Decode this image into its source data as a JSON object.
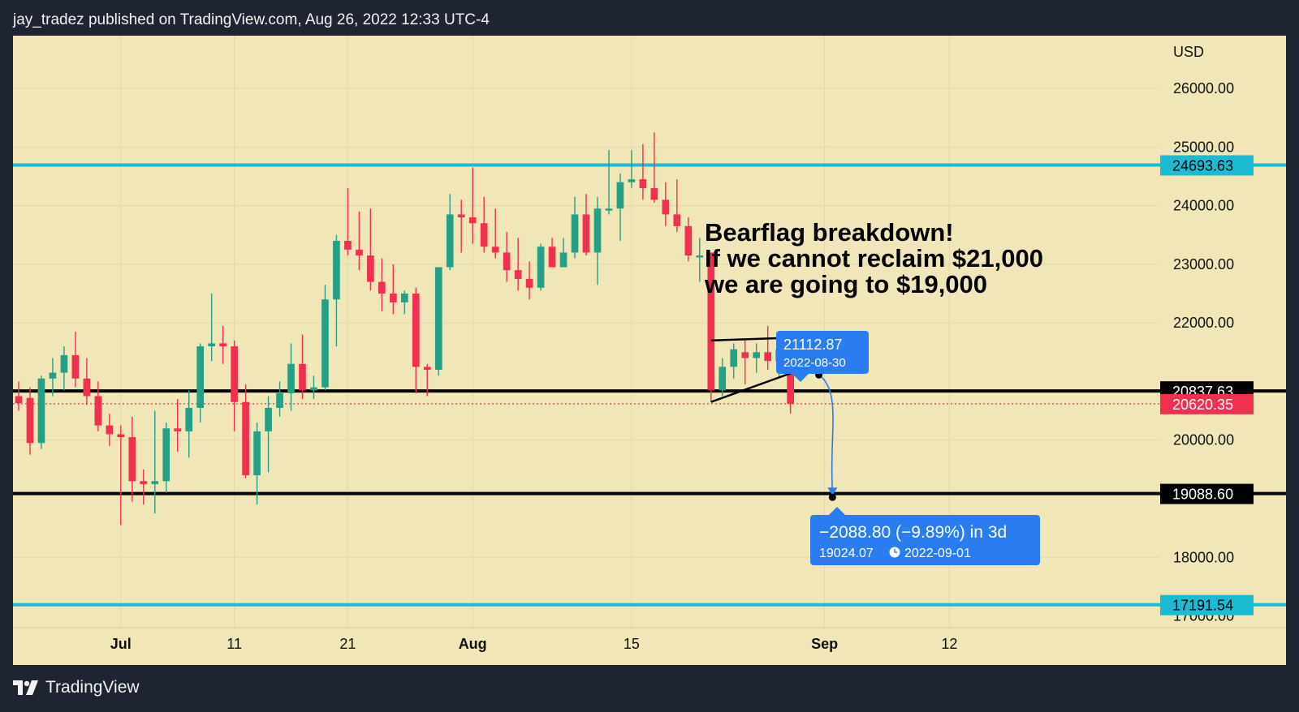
{
  "header": {
    "text": "jay_tradez published on TradingView.com, Aug 26, 2022 12:33 UTC-4"
  },
  "footer": {
    "brand": "TradingView"
  },
  "colors": {
    "background": "#f0e6b8",
    "frame": "#1f2432",
    "up": "#26a085",
    "down": "#f0304f",
    "cyan_line": "#1bbcd3",
    "black_line": "#000000",
    "callout": "#2b7cf0",
    "grid": "#e3d8a6"
  },
  "chart_data": {
    "type": "candlestick",
    "symbol_currency": "USD",
    "y_axis_ticks": [
      "26000.00",
      "25000.00",
      "24000.00",
      "23000.00",
      "22000.00",
      "20000.00",
      "18000.00"
    ],
    "y_range": [
      16800,
      26900
    ],
    "x_axis_ticks": [
      {
        "label": "Jul",
        "day": 5
      },
      {
        "label": "11",
        "day": 15
      },
      {
        "label": "21",
        "day": 25
      },
      {
        "label": "Aug",
        "day": 36
      },
      {
        "label": "15",
        "day": 50
      },
      {
        "label": "Sep",
        "day": 67
      },
      {
        "label": "12",
        "day": 78
      }
    ],
    "x_range": [
      -4.5,
      96.5
    ],
    "candles": [
      {
        "day": -4,
        "o": 20750,
        "h": 21000,
        "l": 20500,
        "c": 20630
      },
      {
        "day": -3,
        "o": 20720,
        "h": 20900,
        "l": 19750,
        "c": 19950
      },
      {
        "day": -2,
        "o": 19950,
        "h": 21100,
        "l": 19850,
        "c": 21050
      },
      {
        "day": -1,
        "o": 21050,
        "h": 21400,
        "l": 20750,
        "c": 21150
      },
      {
        "day": 0,
        "o": 21150,
        "h": 21600,
        "l": 20850,
        "c": 21450
      },
      {
        "day": 1,
        "o": 21450,
        "h": 21850,
        "l": 20900,
        "c": 21050
      },
      {
        "day": 2,
        "o": 21050,
        "h": 21400,
        "l": 20600,
        "c": 20750
      },
      {
        "day": 3,
        "o": 20750,
        "h": 21000,
        "l": 20150,
        "c": 20250
      },
      {
        "day": 4,
        "o": 20250,
        "h": 20450,
        "l": 19900,
        "c": 20100
      },
      {
        "day": 5,
        "o": 20100,
        "h": 20250,
        "l": 18550,
        "c": 20050
      },
      {
        "day": 6,
        "o": 20050,
        "h": 20400,
        "l": 18950,
        "c": 19300
      },
      {
        "day": 7,
        "o": 19300,
        "h": 19500,
        "l": 18900,
        "c": 19250
      },
      {
        "day": 8,
        "o": 19250,
        "h": 20500,
        "l": 18750,
        "c": 19300
      },
      {
        "day": 9,
        "o": 19300,
        "h": 20300,
        "l": 19100,
        "c": 20200
      },
      {
        "day": 10,
        "o": 20200,
        "h": 20700,
        "l": 19800,
        "c": 20150
      },
      {
        "day": 11,
        "o": 20150,
        "h": 20850,
        "l": 19700,
        "c": 20550
      },
      {
        "day": 12,
        "o": 20550,
        "h": 21650,
        "l": 20300,
        "c": 21600
      },
      {
        "day": 13,
        "o": 21600,
        "h": 22500,
        "l": 21350,
        "c": 21650
      },
      {
        "day": 14,
        "o": 21650,
        "h": 21950,
        "l": 21300,
        "c": 21600
      },
      {
        "day": 15,
        "o": 21600,
        "h": 21700,
        "l": 20150,
        "c": 20650
      },
      {
        "day": 16,
        "o": 20650,
        "h": 20950,
        "l": 19350,
        "c": 19400
      },
      {
        "day": 17,
        "o": 19400,
        "h": 20300,
        "l": 18900,
        "c": 20150
      },
      {
        "day": 18,
        "o": 20150,
        "h": 20750,
        "l": 19450,
        "c": 20550
      },
      {
        "day": 19,
        "o": 20550,
        "h": 21000,
        "l": 20400,
        "c": 20800
      },
      {
        "day": 20,
        "o": 20800,
        "h": 21650,
        "l": 20500,
        "c": 21300
      },
      {
        "day": 21,
        "o": 21300,
        "h": 21800,
        "l": 20700,
        "c": 20850
      },
      {
        "day": 22,
        "o": 20850,
        "h": 21100,
        "l": 20700,
        "c": 20900
      },
      {
        "day": 23,
        "o": 20900,
        "h": 22650,
        "l": 20850,
        "c": 22400
      },
      {
        "day": 24,
        "o": 22400,
        "h": 23500,
        "l": 21600,
        "c": 23400
      },
      {
        "day": 25,
        "o": 23400,
        "h": 24300,
        "l": 23150,
        "c": 23250
      },
      {
        "day": 26,
        "o": 23250,
        "h": 23900,
        "l": 22900,
        "c": 23150
      },
      {
        "day": 27,
        "o": 23150,
        "h": 23950,
        "l": 22550,
        "c": 22700
      },
      {
        "day": 28,
        "o": 22700,
        "h": 23100,
        "l": 22200,
        "c": 22500
      },
      {
        "day": 29,
        "o": 22500,
        "h": 23000,
        "l": 22150,
        "c": 22350
      },
      {
        "day": 30,
        "o": 22350,
        "h": 22550,
        "l": 22150,
        "c": 22500
      },
      {
        "day": 31,
        "o": 22500,
        "h": 22600,
        "l": 20800,
        "c": 21250
      },
      {
        "day": 32,
        "o": 21250,
        "h": 21300,
        "l": 20750,
        "c": 21200
      },
      {
        "day": 33,
        "o": 21200,
        "h": 22950,
        "l": 21100,
        "c": 22950
      },
      {
        "day": 34,
        "o": 22950,
        "h": 24200,
        "l": 22900,
        "c": 23850
      },
      {
        "day": 35,
        "o": 23850,
        "h": 24100,
        "l": 23200,
        "c": 23800
      },
      {
        "day": 36,
        "o": 23800,
        "h": 24650,
        "l": 23350,
        "c": 23700
      },
      {
        "day": 37,
        "o": 23700,
        "h": 24150,
        "l": 23200,
        "c": 23300
      },
      {
        "day": 38,
        "o": 23300,
        "h": 23950,
        "l": 23100,
        "c": 23200
      },
      {
        "day": 39,
        "o": 23200,
        "h": 23550,
        "l": 22700,
        "c": 22900
      },
      {
        "day": 40,
        "o": 22900,
        "h": 23450,
        "l": 22550,
        "c": 22750
      },
      {
        "day": 41,
        "o": 22750,
        "h": 23050,
        "l": 22400,
        "c": 22600
      },
      {
        "day": 42,
        "o": 22600,
        "h": 23350,
        "l": 22550,
        "c": 23300
      },
      {
        "day": 43,
        "o": 23300,
        "h": 23450,
        "l": 22950,
        "c": 22950
      },
      {
        "day": 44,
        "o": 22950,
        "h": 23450,
        "l": 22950,
        "c": 23200
      },
      {
        "day": 45,
        "o": 23200,
        "h": 24150,
        "l": 23100,
        "c": 23850
      },
      {
        "day": 46,
        "o": 23850,
        "h": 24200,
        "l": 23150,
        "c": 23200
      },
      {
        "day": 47,
        "o": 23200,
        "h": 24150,
        "l": 22650,
        "c": 23950
      },
      {
        "day": 48,
        "o": 23950,
        "h": 24950,
        "l": 23850,
        "c": 23950
      },
      {
        "day": 49,
        "o": 23950,
        "h": 24550,
        "l": 23400,
        "c": 24400
      },
      {
        "day": 50,
        "o": 24400,
        "h": 24950,
        "l": 24300,
        "c": 24450
      },
      {
        "day": 51,
        "o": 24450,
        "h": 25050,
        "l": 24100,
        "c": 24300
      },
      {
        "day": 52,
        "o": 24300,
        "h": 25250,
        "l": 24050,
        "c": 24100
      },
      {
        "day": 53,
        "o": 24100,
        "h": 24400,
        "l": 23650,
        "c": 23850
      },
      {
        "day": 54,
        "o": 23850,
        "h": 24450,
        "l": 23550,
        "c": 23650
      },
      {
        "day": 55,
        "o": 23650,
        "h": 23800,
        "l": 23050,
        "c": 23150
      },
      {
        "day": 56,
        "o": 23150,
        "h": 23450,
        "l": 22700,
        "c": 23150
      },
      {
        "day": 57,
        "o": 23200,
        "h": 23200,
        "l": 20650,
        "c": 20850
      },
      {
        "day": 58,
        "o": 20850,
        "h": 21400,
        "l": 20750,
        "c": 21250
      },
      {
        "day": 59,
        "o": 21250,
        "h": 21650,
        "l": 21050,
        "c": 21550
      },
      {
        "day": 60,
        "o": 21500,
        "h": 21700,
        "l": 20950,
        "c": 21400
      },
      {
        "day": 61,
        "o": 21400,
        "h": 21650,
        "l": 21150,
        "c": 21500
      },
      {
        "day": 62,
        "o": 21500,
        "h": 21950,
        "l": 21200,
        "c": 21350
      },
      {
        "day": 63,
        "o": 21350,
        "h": 21750,
        "l": 21050,
        "c": 21550
      },
      {
        "day": 64,
        "o": 21600,
        "h": 21850,
        "l": 20450,
        "c": 20620
      }
    ],
    "horizontal_lines": [
      {
        "price": 24693.63,
        "label": "24693.63",
        "color": "cyan"
      },
      {
        "price": 20837.63,
        "label": "20837.63",
        "color": "black"
      },
      {
        "price": 19088.6,
        "label": "19088.60",
        "color": "black"
      },
      {
        "price": 17191.54,
        "label": "17191.54",
        "color": "cyan"
      }
    ],
    "last_price": {
      "price": 20620.35,
      "label": "20620.35"
    },
    "flag_lines": [
      {
        "from": {
          "day": 57,
          "price": 21700
        },
        "to": {
          "day": 64.5,
          "price": 21750
        }
      },
      {
        "from": {
          "day": 57,
          "price": 20650
        },
        "to": {
          "day": 66.3,
          "price": 21300
        }
      }
    ],
    "annotation": {
      "lines": [
        "Bearflag breakdown!",
        "If we cannot reclaim $21,000",
        "we are going to $19,000"
      ]
    },
    "projection": {
      "start": {
        "day": 66.5,
        "price": 21112.87
      },
      "end": {
        "day": 67.7,
        "price": 19024.07
      },
      "start_label": {
        "price": "21112.87",
        "date": "2022-08-30"
      },
      "end_label": {
        "change": "−2088.80 (−9.89%) in 3d",
        "price": "19024.07",
        "date": "2022-09-01"
      }
    },
    "partial_tick": "17000.00"
  }
}
